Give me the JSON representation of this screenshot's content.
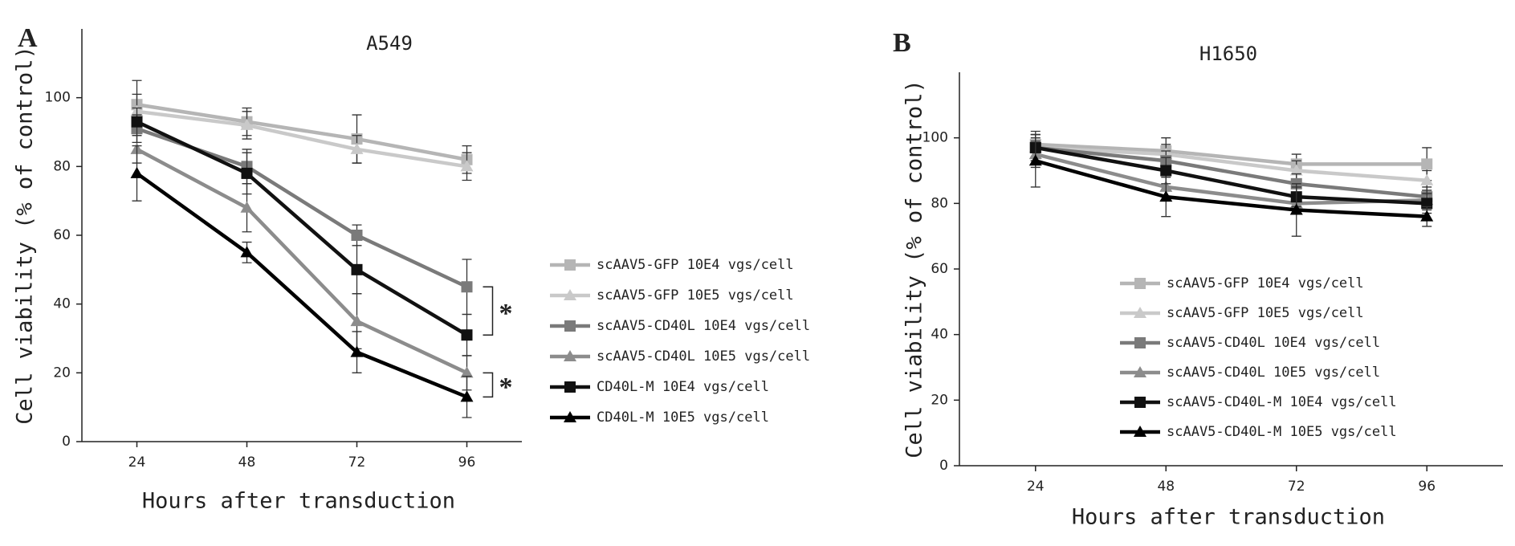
{
  "chart_data": [
    {
      "type": "line",
      "panel_label": "A",
      "title": "A549",
      "x_label": "Hours after transduction",
      "y_label": "Cell viability (% of control)",
      "x": [
        24,
        48,
        72,
        96
      ],
      "xlim": [
        12,
        108
      ],
      "xticks": [
        24,
        48,
        72,
        96
      ],
      "ylim": [
        0,
        120
      ],
      "yticks": [
        0,
        20,
        40,
        60,
        80,
        100
      ],
      "series": [
        {
          "name": "scAAV5-GFP 10E4 vgs/cell",
          "color": "#b5b5b5",
          "marker": "square",
          "values": [
            98,
            93,
            88,
            82
          ],
          "errors": [
            7,
            4,
            7,
            4
          ]
        },
        {
          "name": "scAAV5-GFP 10E5 vgs/cell",
          "color": "#c9c9c9",
          "marker": "triangle",
          "values": [
            96,
            92,
            85,
            80
          ],
          "errors": [
            5,
            4,
            4,
            4
          ]
        },
        {
          "name": "scAAV5-CD40L 10E4 vgs/cell",
          "color": "#7a7a7a",
          "marker": "square",
          "values": [
            91,
            80,
            60,
            45
          ],
          "errors": [
            4,
            5,
            3,
            8
          ]
        },
        {
          "name": "scAAV5-CD40L 10E5 vgs/cell",
          "color": "#8c8c8c",
          "marker": "triangle",
          "values": [
            85,
            68,
            35,
            20
          ],
          "errors": [
            4,
            7,
            8,
            5
          ]
        },
        {
          "name": "CD40L-M 10E4 vgs/cell",
          "color": "#111111",
          "marker": "square",
          "values": [
            93,
            78,
            50,
            31
          ],
          "errors": [
            4,
            6,
            7,
            6
          ]
        },
        {
          "name": "CD40L-M 10E5 vgs/cell",
          "color": "#000000",
          "marker": "triangle",
          "values": [
            78,
            55,
            26,
            13
          ],
          "errors": [
            8,
            3,
            6,
            6
          ]
        }
      ],
      "annotations": [
        "*",
        "*"
      ]
    },
    {
      "type": "line",
      "panel_label": "B",
      "title": "H1650",
      "x_label": "Hours after transduction",
      "y_label": "Cell viability (% of control)",
      "x": [
        24,
        48,
        72,
        96
      ],
      "xlim": [
        10,
        110
      ],
      "xticks": [
        24,
        48,
        72,
        96
      ],
      "ylim": [
        0,
        120
      ],
      "yticks": [
        0,
        20,
        40,
        60,
        80,
        100
      ],
      "series": [
        {
          "name": "scAAV5-GFP 10E4 vgs/cell",
          "color": "#b5b5b5",
          "marker": "square",
          "values": [
            98,
            96,
            92,
            92
          ],
          "errors": [
            4,
            4,
            3,
            5
          ]
        },
        {
          "name": "scAAV5-GFP 10E5 vgs/cell",
          "color": "#c9c9c9",
          "marker": "triangle",
          "values": [
            97,
            95,
            90,
            87
          ],
          "errors": [
            4,
            3,
            3,
            3
          ]
        },
        {
          "name": "scAAV5-CD40L 10E4 vgs/cell",
          "color": "#7a7a7a",
          "marker": "square",
          "values": [
            97,
            93,
            86,
            82
          ],
          "errors": [
            3,
            3,
            3,
            3
          ]
        },
        {
          "name": "scAAV5-CD40L 10E5 vgs/cell",
          "color": "#8c8c8c",
          "marker": "triangle",
          "values": [
            95,
            85,
            80,
            81
          ],
          "errors": [
            4,
            4,
            3,
            3
          ]
        },
        {
          "name": "scAAV5-CD40L-M 10E4 vgs/cell",
          "color": "#111111",
          "marker": "square",
          "values": [
            97,
            90,
            82,
            80
          ],
          "errors": [
            4,
            4,
            3,
            3
          ]
        },
        {
          "name": "scAAV5-CD40L-M 10E5 vgs/cell",
          "color": "#000000",
          "marker": "triangle",
          "values": [
            93,
            82,
            78,
            76
          ],
          "errors": [
            8,
            6,
            8,
            3
          ]
        }
      ]
    }
  ]
}
